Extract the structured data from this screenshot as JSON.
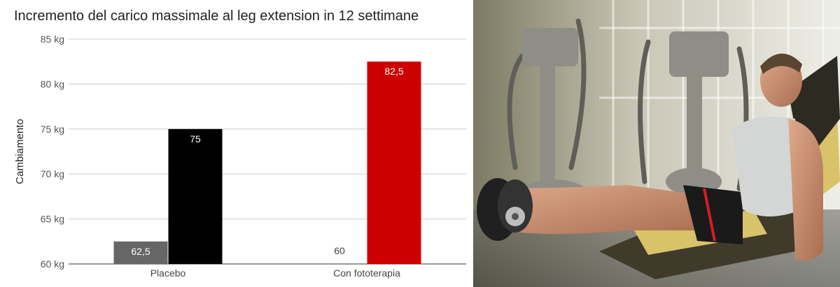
{
  "chart_data": {
    "type": "bar",
    "title": "Incremento del carico massimale al leg extension in 12 settimane",
    "xlabel": "",
    "ylabel": "Cambiamento",
    "ylim": [
      60,
      85
    ],
    "yticks": [
      60,
      65,
      70,
      75,
      80,
      85
    ],
    "ytick_unit": "kg",
    "categories": [
      "Placebo",
      "Con fototerapia"
    ],
    "series": [
      {
        "values": [
          62.5,
          60
        ],
        "color": "#666666",
        "labels": [
          "62,5",
          "60"
        ]
      },
      {
        "values": [
          75,
          82.5
        ],
        "colors": [
          "#000000",
          "#cc0000"
        ],
        "labels": [
          "75",
          "82,5"
        ]
      }
    ],
    "grid": true,
    "legend": "none"
  },
  "photo": {
    "description_icon": "leg-extension-photo"
  }
}
